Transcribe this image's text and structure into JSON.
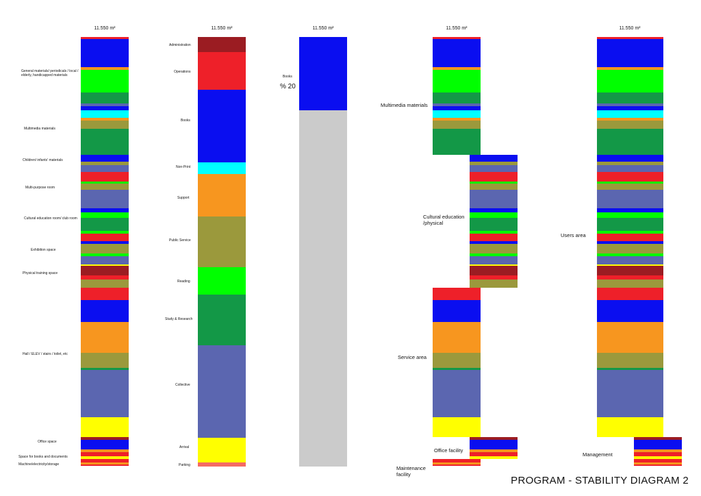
{
  "title": "PROGRAM - STABILITY DIAGRAM 2",
  "total_label": "11.550 m²",
  "colors": {
    "darkred": "#9b1c22",
    "red": "#ee2029",
    "blue": "#0a0ef0",
    "cyan": "#00ffff",
    "orange": "#f7961f",
    "olive": "#9b993c",
    "green": "#00ff00",
    "darkgreen": "#139847",
    "slate": "#5b66b0",
    "yellow": "#ffff00",
    "salmon": "#f56b63",
    "grey": "#cbcbcb"
  },
  "column1_labels": [
    "General materials/ periodicals / local /\nelderly, handicapped materials",
    "Multimedia materials",
    "Children/ infants' materials",
    "Multi-purpose room",
    "Cultural education room/ club room",
    "Exhibition space",
    "Physical training space",
    "Hall / ELEV / stairs / toilet, etc",
    "Office space",
    "Space for books and documents",
    "Machine/electricity/storage"
  ],
  "column2_labels": [
    "Administration",
    "Operations",
    "Books",
    "Non-Print",
    "Support",
    "Public Service",
    "Reading",
    "Study & Research",
    "Collective",
    "Arrival",
    "Parking"
  ],
  "column3": {
    "label": "Books",
    "percent": "% 20"
  },
  "column4_labels": [
    "Multimedia materials",
    "Cultural education\n/physical",
    "Service area",
    "Office facility",
    "Maintenance\nfacility"
  ],
  "column5_labels": [
    "Users area",
    "Management"
  ]
}
